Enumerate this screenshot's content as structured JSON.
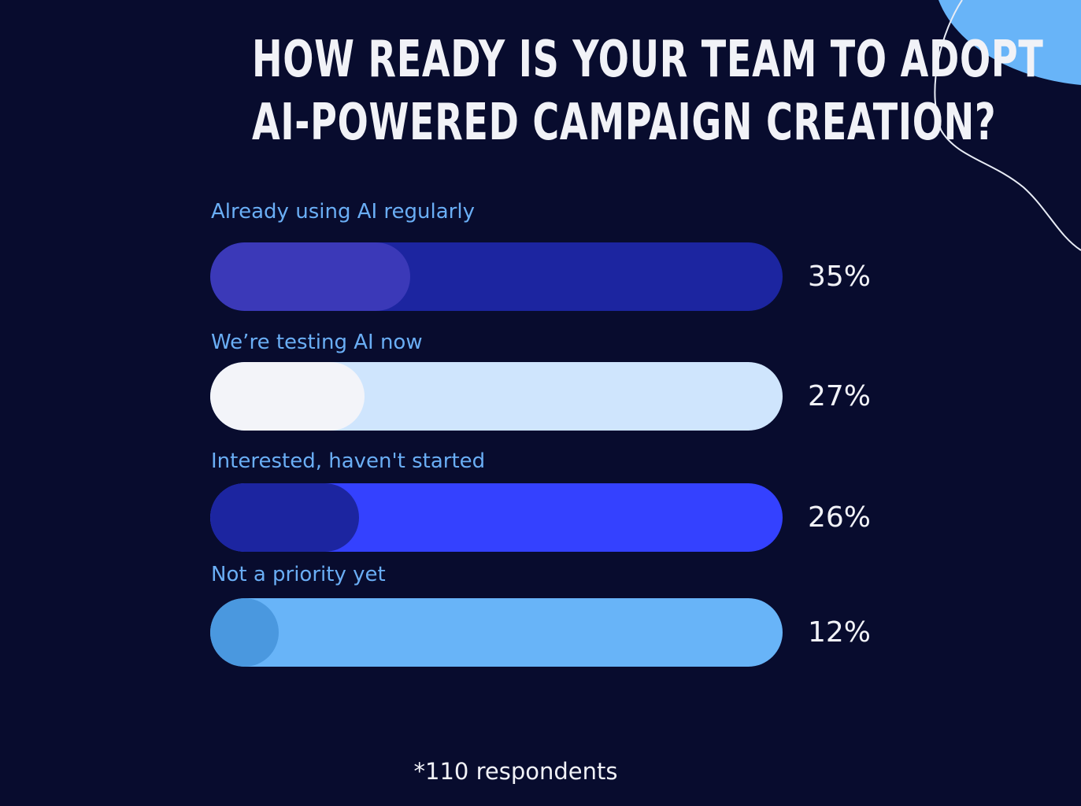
{
  "chart_data": {
    "type": "bar",
    "orientation": "horizontal",
    "title": "HOW READY IS YOUR TEAM TO ADOPT AI-POWERED CAMPAIGN CREATION?",
    "title_lines": [
      "HOW READY IS YOUR TEAM TO ADOPT",
      "AI-POWERED CAMPAIGN CREATION?"
    ],
    "categories": [
      "Already using AI regularly",
      "We’re testing AI now",
      "Interested, haven't started",
      "Not a priority yet"
    ],
    "values": [
      35,
      27,
      26,
      12
    ],
    "value_labels": [
      "35%",
      "27%",
      "26%",
      "12%"
    ],
    "unit": "%",
    "xlim": [
      0,
      100
    ],
    "grid": false,
    "legend": "none",
    "bar_colors": [
      {
        "track": "#1c25a0",
        "fill": "#3b39b8"
      },
      {
        "track": "#cfe5fd",
        "fill": "#f3f4f9"
      },
      {
        "track": "#3441ff",
        "fill": "#1c25a0"
      },
      {
        "track": "#68b4f8",
        "fill": "#4a98df"
      }
    ],
    "footnote": "*110 respondents"
  },
  "colors": {
    "background": "#080c2e",
    "label": "#6aaef5",
    "text": "#f1f2f7",
    "decor_blob": "#68b4f8",
    "decor_stroke": "#e8ecf5"
  }
}
